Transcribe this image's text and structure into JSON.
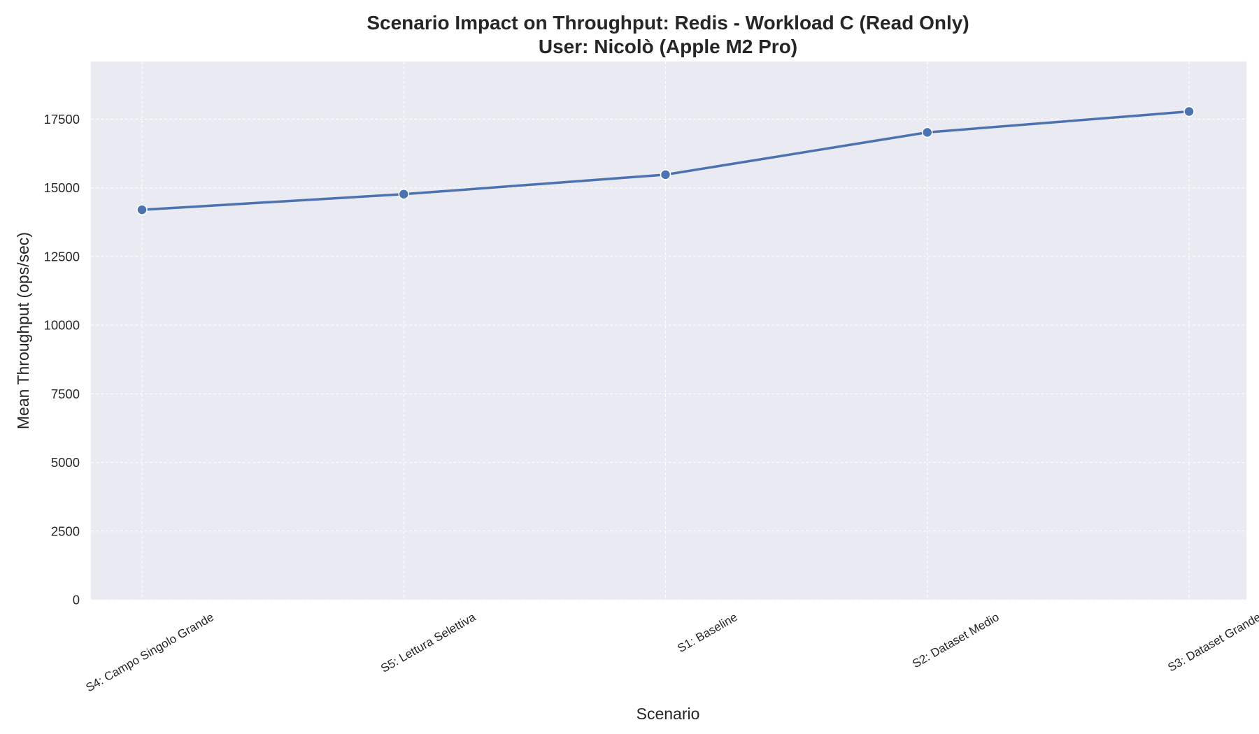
{
  "chart_data": {
    "type": "line",
    "title": "Scenario Impact on Throughput: Redis - Workload C (Read Only)",
    "subtitle": "User: Nicolò (Apple M2 Pro)",
    "xlabel": "Scenario",
    "ylabel": "Mean Throughput (ops/sec)",
    "categories": [
      "S4: Campo Singolo Grande",
      "S5: Lettura Selettiva",
      "S1: Baseline",
      "S2: Dataset Medio",
      "S3: Dataset Grande"
    ],
    "series": [
      {
        "values": [
          14200,
          14770,
          15480,
          17020,
          17780
        ]
      }
    ],
    "ylim": [
      0,
      19600
    ],
    "yticks": [
      0,
      2500,
      5000,
      7500,
      10000,
      12500,
      15000,
      17500
    ],
    "grid": true,
    "colors": {
      "line": "#4c72b0",
      "plot_background": "#eaeaf2",
      "grid": "#ffffff"
    }
  }
}
